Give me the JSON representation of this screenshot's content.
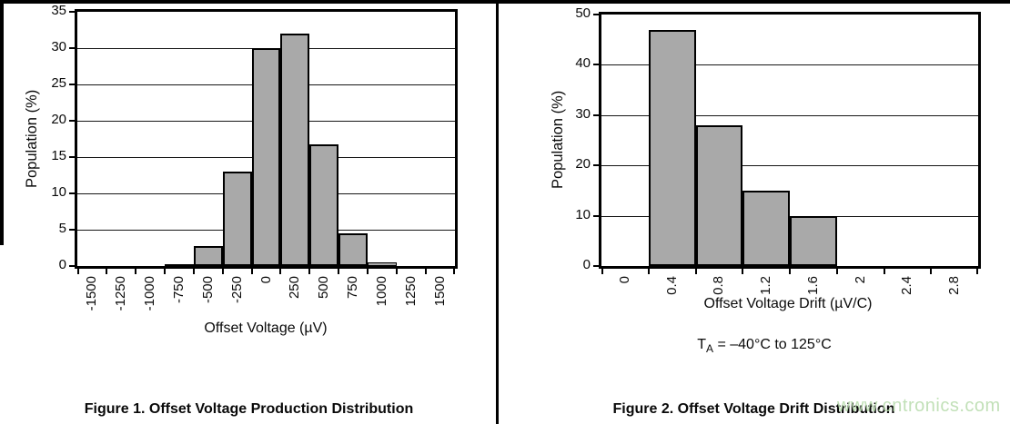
{
  "watermark": "www.cntronics.com",
  "chart_data": [
    {
      "type": "bar",
      "title": "Figure 1. Offset Voltage Production Distribution",
      "xlabel": "Offset Voltage (µV)",
      "ylabel": "Population (%)",
      "ylim": [
        0,
        35
      ],
      "yticks": [
        0,
        5,
        10,
        15,
        20,
        25,
        30,
        35
      ],
      "grid": true,
      "legend": "none",
      "bar_color": "#a9a9a9",
      "categories": [
        "-1500",
        "-1250",
        "-1000",
        "-750",
        "-500",
        "-250",
        "0",
        "250",
        "500",
        "750",
        "1000",
        "1250",
        "1500"
      ],
      "values": [
        0,
        0,
        0,
        0.2,
        2.8,
        13,
        30,
        32,
        16.8,
        4.5,
        0.5,
        0,
        0
      ]
    },
    {
      "type": "bar",
      "title": "Figure 2. Offset Voltage Drift Distribution",
      "xlabel": "Offset Voltage Drift (µV/C)",
      "ylabel": "Population (%)",
      "ylim": [
        0,
        50
      ],
      "yticks": [
        0,
        10,
        20,
        30,
        40,
        50
      ],
      "grid": true,
      "legend": "none",
      "bar_color": "#a9a9a9",
      "categories": [
        "0",
        "0.4",
        "0.8",
        "1.2",
        "1.6",
        "2",
        "2.4",
        "2.8"
      ],
      "values": [
        0,
        47,
        28,
        15,
        10,
        0,
        0,
        0
      ],
      "note": {
        "pre": "T",
        "sub": "A",
        "post": " = –40°C to 125°C"
      }
    }
  ]
}
